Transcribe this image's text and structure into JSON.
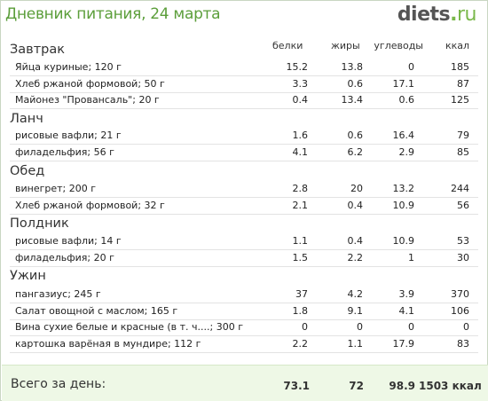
{
  "header": {
    "title": "Дневник питания, 24 марта",
    "logo": {
      "main": "diets",
      "dot": ".",
      "tld": "ru"
    }
  },
  "columns": {
    "protein": "белки",
    "fat": "жиры",
    "carbs": "углеводы",
    "kcal": "ккал"
  },
  "meals": [
    {
      "title": "Завтрак",
      "items": [
        {
          "name": "Яйца куриные; 120 г",
          "protein": "15.2",
          "fat": "13.8",
          "carbs": "0",
          "kcal": "185"
        },
        {
          "name": "Хлеб ржаной формовой; 50 г",
          "protein": "3.3",
          "fat": "0.6",
          "carbs": "17.1",
          "kcal": "87"
        },
        {
          "name": "Майонез \"Провансаль\"; 20 г",
          "protein": "0.4",
          "fat": "13.4",
          "carbs": "0.6",
          "kcal": "125"
        }
      ]
    },
    {
      "title": "Ланч",
      "items": [
        {
          "name": "рисовые вафли; 21 г",
          "protein": "1.6",
          "fat": "0.6",
          "carbs": "16.4",
          "kcal": "79"
        },
        {
          "name": "филадельфия; 56 г",
          "protein": "4.1",
          "fat": "6.2",
          "carbs": "2.9",
          "kcal": "85"
        }
      ]
    },
    {
      "title": "Обед",
      "items": [
        {
          "name": "винегрет; 200 г",
          "protein": "2.8",
          "fat": "20",
          "carbs": "13.2",
          "kcal": "244"
        },
        {
          "name": "Хлеб ржаной формовой; 32 г",
          "protein": "2.1",
          "fat": "0.4",
          "carbs": "10.9",
          "kcal": "56"
        }
      ]
    },
    {
      "title": "Полдник",
      "items": [
        {
          "name": "рисовые вафли; 14 г",
          "protein": "1.1",
          "fat": "0.4",
          "carbs": "10.9",
          "kcal": "53"
        },
        {
          "name": "филадельфия; 20 г",
          "protein": "1.5",
          "fat": "2.2",
          "carbs": "1",
          "kcal": "30"
        }
      ]
    },
    {
      "title": "Ужин",
      "items": [
        {
          "name": "пангазиус; 245 г",
          "protein": "37",
          "fat": "4.2",
          "carbs": "3.9",
          "kcal": "370"
        },
        {
          "name": "Салат овощной с маслом; 165 г",
          "protein": "1.8",
          "fat": "9.1",
          "carbs": "4.1",
          "kcal": "106"
        },
        {
          "name": "Вина сухие белые и красные (в т. ч....; 300 г",
          "protein": "0",
          "fat": "0",
          "carbs": "0",
          "kcal": "0"
        },
        {
          "name": "картошка варёная в мундире; 112 г",
          "protein": "2.2",
          "fat": "1.1",
          "carbs": "17.9",
          "kcal": "83"
        }
      ]
    }
  ],
  "total": {
    "label": "Всего за день:",
    "protein": "73.1",
    "fat": "72",
    "carbs": "98.9",
    "kcal": "1503 ккал"
  }
}
